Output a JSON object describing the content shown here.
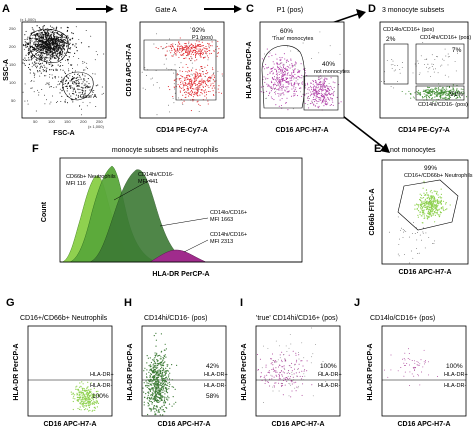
{
  "colors": {
    "black_events": "#111111",
    "gate_b_events": "#e0262b",
    "purple_events": "#b03fa8",
    "green_events": "#3b8a2e",
    "light_green": "#8fd14f",
    "mid_green": "#5aa83a",
    "dark_green": "#3c7a35",
    "magenta": "#a02b8c"
  },
  "panels": [
    {
      "id": "A",
      "letter": "A",
      "title": "",
      "type": "scatter",
      "xlabel": "FSC-A",
      "ylabel": "SSC-A",
      "y_ticks": [
        "250",
        "200",
        "150",
        "100",
        "50"
      ],
      "x_ticks": [
        "50",
        "100",
        "150",
        "200",
        "250"
      ],
      "y_unit": "(x 1,000)",
      "x_unit": "(x 1,000)",
      "gate_labels": [
        "Gate B",
        "Gate A"
      ],
      "percent_labels": []
    },
    {
      "id": "B",
      "letter": "B",
      "title": "Gate A",
      "type": "scatter",
      "xlabel": "CD14 PE-Cy7-A",
      "ylabel": "CD16 APC-H7-A",
      "gate_labels": [
        "P1 (pos)"
      ],
      "percent_labels": [
        "92%"
      ]
    },
    {
      "id": "C",
      "letter": "C",
      "title": "P1 (pos)",
      "type": "scatter",
      "xlabel": "CD16 APC-H7-A",
      "ylabel": "HLA-DR PerCP-A",
      "gate_labels": [
        "'True' monocytes",
        "not monocytes"
      ],
      "percent_labels": [
        "60%",
        "40%"
      ]
    },
    {
      "id": "D",
      "letter": "D",
      "title": "3 monocyte subsets",
      "type": "scatter",
      "xlabel": "CD14 PE-Cy7-A",
      "ylabel": "",
      "gate_labels": [
        "CD14lo/CD16+ (pos)",
        "CD14hi/CD16+ (pos)",
        "CD14hi/CD16- (pos)"
      ],
      "percent_labels": [
        "2%",
        "7%",
        "91%"
      ]
    },
    {
      "id": "E",
      "letter": "E",
      "title": "not monocytes",
      "type": "scatter",
      "xlabel": "CD16 APC-H7-A",
      "ylabel": "CD66b FITC-A",
      "gate_labels": [
        "CD16+/CD66b+ Neutrophils"
      ],
      "percent_labels": [
        "99%"
      ]
    },
    {
      "id": "G",
      "letter": "G",
      "title": "CD16+/CD66b+ Neutrophils",
      "type": "scatter",
      "xlabel": "CD16 APC-H7-A",
      "ylabel": "HLA-DR PerCP-A",
      "gate_labels": [
        "HLA-DR+",
        "HLA-DR-"
      ],
      "percent_labels": [
        "100%"
      ]
    },
    {
      "id": "H",
      "letter": "H",
      "title": "CD14hi/CD16- (pos)",
      "type": "scatter",
      "xlabel": "CD16 APC-H7-A",
      "ylabel": "HLA-DR PerCP-A",
      "gate_labels": [
        "HLA-DR+",
        "HLA-DR-"
      ],
      "percent_labels": [
        "42%",
        "58%"
      ]
    },
    {
      "id": "I",
      "letter": "I",
      "title": "'true' CD14hi/CD16+ (pos)",
      "type": "scatter",
      "xlabel": "CD16 APC-H7-A",
      "ylabel": "HLA-DR PerCP-A",
      "gate_labels": [
        "HLA-DR+",
        "HLA-DR-"
      ],
      "percent_labels": [
        "100%"
      ]
    },
    {
      "id": "J",
      "letter": "J",
      "title": "CD14lo/CD16+ (pos)",
      "type": "scatter",
      "xlabel": "CD16 APC-H7-A",
      "ylabel": "HLA-DR PerCP-A",
      "gate_labels": [
        "HLA-DR+",
        "HLA-DR-"
      ],
      "percent_labels": [
        "100%"
      ]
    }
  ],
  "histogram": {
    "letter": "F",
    "title": "monocyte subsets and neutrophils",
    "xlabel": "HLA-DR PerCP-A",
    "ylabel": "Count",
    "annotations": [
      "CD66b+ Neutrophils",
      "MFI 116",
      "CD14hi/CD16-",
      "MFI 441",
      "CD14lo/CD16+",
      "MFI 1663",
      "CD14hi/CD16+",
      "MFI 2313"
    ]
  },
  "chart_data": [
    {
      "type": "scatter",
      "panel": "C",
      "title": "P1 (pos)",
      "xlabel": "CD16 APC-H7-A",
      "ylabel": "HLA-DR PerCP-A",
      "gates": [
        {
          "name": "'True' monocytes",
          "percent": 60
        },
        {
          "name": "not monocytes",
          "percent": 40
        }
      ]
    },
    {
      "type": "scatter",
      "panel": "D",
      "title": "3 monocyte subsets",
      "xlabel": "CD14 PE-Cy7-A",
      "gates": [
        {
          "name": "CD14lo/CD16+ (pos)",
          "percent": 2
        },
        {
          "name": "CD14hi/CD16+ (pos)",
          "percent": 7
        },
        {
          "name": "CD14hi/CD16- (pos)",
          "percent": 91
        }
      ]
    },
    {
      "type": "scatter",
      "panel": "H",
      "title": "CD14hi/CD16- (pos)",
      "xlabel": "CD16 APC-H7-A",
      "ylabel": "HLA-DR PerCP-A",
      "gates": [
        {
          "name": "HLA-DR+",
          "percent": 42
        },
        {
          "name": "HLA-DR-",
          "percent": 58
        }
      ]
    },
    {
      "type": "area",
      "panel": "F",
      "title": "monocyte subsets and neutrophils",
      "xlabel": "HLA-DR PerCP-A",
      "ylabel": "Count",
      "series": [
        {
          "name": "CD66b+ Neutrophils",
          "mfi": 116
        },
        {
          "name": "CD14hi/CD16-",
          "mfi": 441
        },
        {
          "name": "CD14lo/CD16+",
          "mfi": 1663
        },
        {
          "name": "CD14hi/CD16+",
          "mfi": 2313
        }
      ]
    }
  ]
}
